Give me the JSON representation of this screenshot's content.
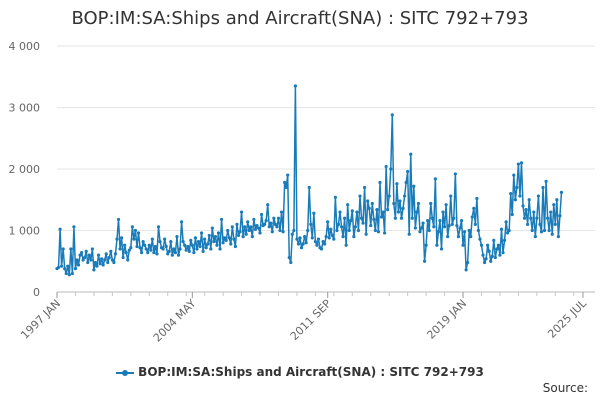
{
  "chart_data": {
    "type": "line",
    "title": "BOP:IM:SA:Ships and Aircraft(SNA) : SITC 792+793",
    "ylim": [
      0,
      4000
    ],
    "yticks": [
      0,
      1000,
      2000,
      3000,
      4000
    ],
    "ytick_labels": [
      "0",
      "1 000",
      "2 000",
      "3 000",
      "4 000"
    ],
    "xlim": [
      "1997-01",
      "2025-07"
    ],
    "xtick_labels": [
      "1997 JAN",
      "2004 MAY",
      "2011 SEP",
      "2019 JAN",
      "2025 JUL"
    ],
    "xtick_dates": [
      "1997-01",
      "2004-05",
      "2011-09",
      "2019-01",
      "2025-07"
    ],
    "grid": "horizontal",
    "legend_position": "bottom",
    "source": "Source:",
    "series": [
      {
        "name": "BOP:IM:SA:Ships and Aircraft(SNA) : SITC 792+793",
        "color": "#1a7bb9",
        "x_start": "1997-01",
        "frequency": "monthly",
        "values": [
          380,
          400,
          1020,
          420,
          700,
          380,
          300,
          420,
          280,
          700,
          300,
          1060,
          380,
          520,
          440,
          600,
          640,
          520,
          560,
          660,
          480,
          600,
          520,
          700,
          360,
          480,
          420,
          600,
          460,
          540,
          440,
          520,
          620,
          480,
          560,
          660,
          520,
          480,
          620,
          860,
          1180,
          700,
          880,
          560,
          760,
          640,
          520,
          680,
          720,
          1060,
          860,
          1000,
          740,
          960,
          720,
          640,
          820,
          760,
          700,
          640,
          760,
          680,
          860,
          640,
          740,
          620,
          1060,
          820,
          720,
          700,
          860,
          740,
          620,
          660,
          820,
          600,
          700,
          640,
          900,
          600,
          700,
          1140,
          820,
          760,
          680,
          740,
          660,
          840,
          760,
          640,
          880,
          700,
          820,
          740,
          960,
          660,
          860,
          720,
          780,
          920,
          700,
          1040,
          820,
          900,
          760,
          960,
          700,
          1180,
          800,
          880,
          840,
          1000,
          880,
          780,
          1060,
          860,
          740,
          1100,
          920,
          980,
          1300,
          900,
          1060,
          940,
          1140,
          1000,
          1060,
          900,
          1180,
          1020,
          1080,
          1040,
          960,
          1260,
          1080,
          1100,
          1160,
          1420,
          1060,
          1120,
          980,
          1200,
          1100,
          1060,
          1200,
          1000,
          1300,
          980,
          1780,
          1700,
          1900,
          560,
          480,
          940,
          1000,
          3350,
          860,
          780,
          880,
          720,
          780,
          900,
          800,
          1000,
          1700,
          1100,
          880,
          1280,
          820,
          760,
          860,
          720,
          700,
          820,
          780,
          900,
          1140,
          880,
          1020,
          920,
          860,
          1540,
          1000,
          1100,
          1300,
          1060,
          900,
          1200,
          760,
          1420,
          1000,
          1160,
          1320,
          900,
          1060,
          1300,
          1000,
          1560,
          1200,
          1120,
          1700,
          940,
          1480,
          1360,
          1080,
          1440,
          1180,
          1000,
          1340,
          980,
          1780,
          1220,
          1300,
          960,
          2040,
          1340,
          1560,
          2000,
          2880,
          1440,
          1200,
          1760,
          1300,
          1480,
          1200,
          1360,
          1560,
          1780,
          1960,
          940,
          2240,
          1200,
          1720,
          1040,
          1300,
          1440,
          980,
          1040,
          1120,
          500,
          760,
          1160,
          1000,
          1440,
          1200,
          1060,
          1840,
          760,
          980,
          1160,
          700,
          1300,
          1060,
          1420,
          900,
          1080,
          1560,
          1100,
          1200,
          1920,
          1080,
          900,
          1040,
          1160,
          760,
          980,
          360,
          480,
          1000,
          900,
          1220,
          1360,
          1100,
          1520,
          1000,
          860,
          760,
          600,
          480,
          540,
          760,
          660,
          500,
          580,
          840,
          560,
          700,
          760,
          600,
          1020,
          640,
          840,
          1140,
          960,
          1000,
          1600,
          1260,
          1900,
          1500,
          1700,
          2080,
          1560,
          2100,
          1400,
          1200,
          1340,
          1100,
          1500,
          1200,
          1000,
          1300,
          900,
          1200,
          1560,
          1100,
          980,
          1700,
          1000,
          1800,
          1200,
          1000,
          1300,
          940,
          1420,
          1100,
          1500,
          900,
          1240,
          1620
        ]
      }
    ]
  }
}
